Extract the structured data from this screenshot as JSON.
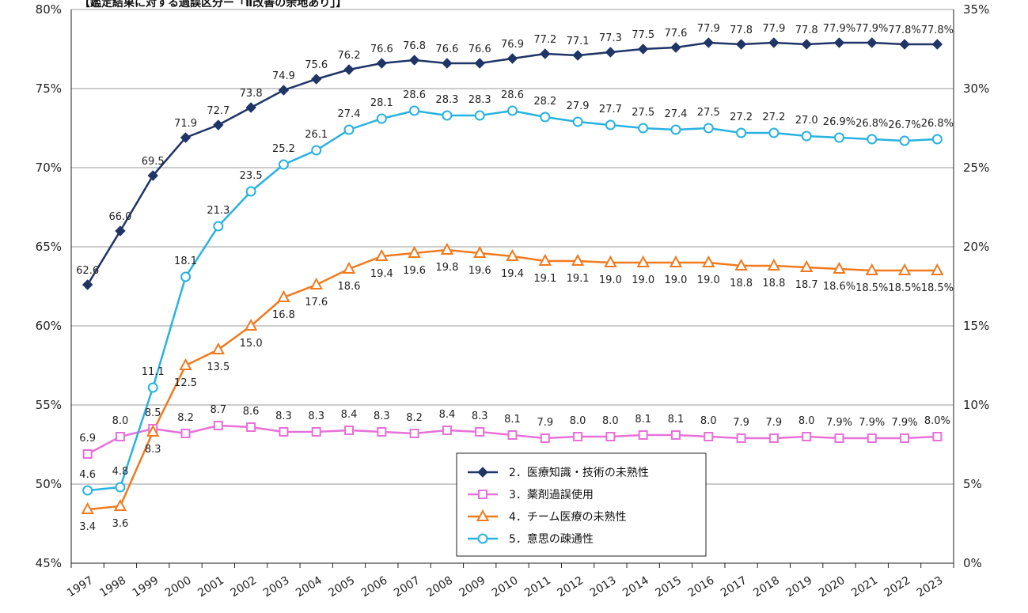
{
  "chart_data": {
    "type": "line",
    "title": "【鑑定結果に対する過誤区分ー「Ⅱ改善の余地あり」】",
    "categories": [
      "1997",
      "1998",
      "1999",
      "2000",
      "2001",
      "2002",
      "2003",
      "2004",
      "2005",
      "2006",
      "2007",
      "2008",
      "2009",
      "2010",
      "2011",
      "2012",
      "2013",
      "2014",
      "2015",
      "2016",
      "2017",
      "2018",
      "2019",
      "2020",
      "2021",
      "2022",
      "2023"
    ],
    "y_left": {
      "min": 45,
      "max": 80,
      "ticks": [
        "80%",
        "75%",
        "70%",
        "65%",
        "60%",
        "55%",
        "50%",
        "45%"
      ]
    },
    "y_right": {
      "min": 0,
      "max": 35,
      "ticks": [
        "35%",
        "30%",
        "25%",
        "20%",
        "15%",
        "10%",
        "5%",
        "0%"
      ]
    },
    "grid": true,
    "legend_position": "bottom-center",
    "series": [
      {
        "name": "2．医療知識・技術の未熟性",
        "axis": "left",
        "color": "#1f3566",
        "marker": "diamond",
        "values": [
          62.6,
          66.0,
          69.5,
          71.9,
          72.7,
          73.8,
          74.9,
          75.6,
          76.2,
          76.6,
          76.8,
          76.6,
          76.6,
          76.9,
          77.2,
          77.1,
          77.3,
          77.5,
          77.6,
          77.9,
          77.8,
          77.9,
          77.8,
          77.9,
          77.9,
          77.8,
          77.8
        ],
        "labels": [
          "62.6",
          "66.0",
          "69.5",
          "71.9",
          "72.7",
          "73.8",
          "74.9",
          "75.6",
          "76.2",
          "76.6",
          "76.8",
          "76.6",
          "76.6",
          "76.9",
          "77.2",
          "77.1",
          "77.3",
          "77.5",
          "77.6",
          "77.9",
          "77.8",
          "77.9",
          "77.8",
          "77.9%",
          "77.9%",
          "77.8%",
          "77.8%"
        ]
      },
      {
        "name": "3．薬剤過誤使用",
        "axis": "right",
        "color": "#e870d8",
        "marker": "square",
        "values": [
          6.9,
          8.0,
          8.5,
          8.2,
          8.7,
          8.6,
          8.3,
          8.3,
          8.4,
          8.3,
          8.2,
          8.4,
          8.3,
          8.1,
          7.9,
          8.0,
          8.0,
          8.1,
          8.1,
          8.0,
          7.9,
          7.9,
          8.0,
          7.9,
          7.9,
          7.9,
          8.0
        ],
        "labels": [
          "6.9",
          "8.0",
          "8.5",
          "8.2",
          "8.7",
          "8.6",
          "8.3",
          "8.3",
          "8.4",
          "8.3",
          "8.2",
          "8.4",
          "8.3",
          "8.1",
          "7.9",
          "8.0",
          "8.0",
          "8.1",
          "8.1",
          "8.0",
          "7.9",
          "7.9",
          "8.0",
          "7.9%",
          "7.9%",
          "7.9%",
          "8.0%"
        ]
      },
      {
        "name": "4．チーム医療の未熟性",
        "axis": "right",
        "color": "#f07a1e",
        "marker": "triangle",
        "values": [
          3.4,
          3.6,
          8.3,
          12.5,
          13.5,
          15.0,
          16.8,
          17.6,
          18.6,
          19.4,
          19.6,
          19.8,
          19.6,
          19.4,
          19.1,
          19.1,
          19.0,
          19.0,
          19.0,
          19.0,
          18.8,
          18.8,
          18.7,
          18.6,
          18.5,
          18.5,
          18.5
        ],
        "labels": [
          "3.4",
          "3.6",
          "8.3",
          "12.5",
          "13.5",
          "15.0",
          "16.8",
          "17.6",
          "18.6",
          "19.4",
          "19.6",
          "19.8",
          "19.6",
          "19.4",
          "19.1",
          "19.1",
          "19.0",
          "19.0",
          "19.0",
          "19.0",
          "18.8",
          "18.8",
          "18.7",
          "18.6%",
          "18.5%",
          "18.5%",
          "18.5%"
        ]
      },
      {
        "name": "5．意思の疎通性",
        "axis": "right",
        "color": "#27b2e0",
        "marker": "circle",
        "values": [
          4.6,
          4.8,
          11.1,
          18.1,
          21.3,
          23.5,
          25.2,
          26.1,
          27.4,
          28.1,
          28.6,
          28.3,
          28.3,
          28.6,
          28.2,
          27.9,
          27.7,
          27.5,
          27.4,
          27.5,
          27.2,
          27.2,
          27.0,
          26.9,
          26.8,
          26.7,
          26.8
        ],
        "labels": [
          "4.6",
          "4.8",
          "11.1",
          "18.1",
          "21.3",
          "23.5",
          "25.2",
          "26.1",
          "27.4",
          "28.1",
          "28.6",
          "28.3",
          "28.3",
          "28.6",
          "28.2",
          "27.9",
          "27.7",
          "27.5",
          "27.4",
          "27.5",
          "27.2",
          "27.2",
          "27.0",
          "26.9%",
          "26.8%",
          "26.7%",
          "26.8%"
        ]
      }
    ]
  }
}
